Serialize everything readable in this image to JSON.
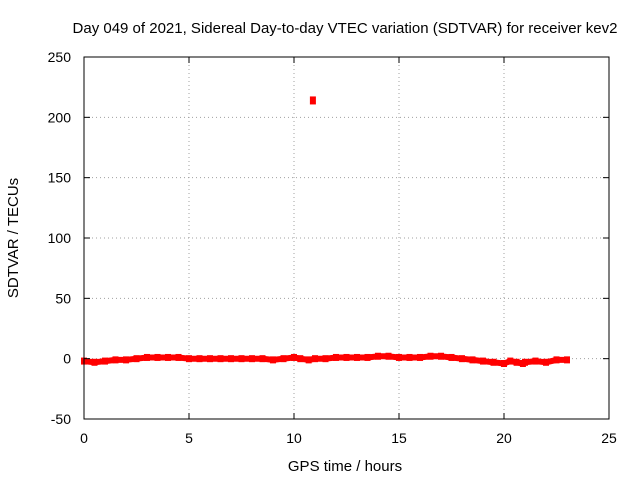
{
  "chart_data": {
    "type": "scatter",
    "title": "Day 049 of 2021, Sidereal Day-to-day VTEC variation (SDTVAR) for receiver kev2",
    "xlabel": "GPS time / hours",
    "ylabel": "SDTVAR / TECUs",
    "xlim": [
      0,
      25
    ],
    "ylim": [
      -50,
      250
    ],
    "xticks": [
      0,
      5,
      10,
      15,
      20,
      25
    ],
    "yticks": [
      -50,
      0,
      50,
      100,
      150,
      200,
      250
    ],
    "grid": true,
    "series": [
      {
        "name": "SDTVAR",
        "color": "#ff0000",
        "x": [
          0.0,
          0.5,
          1.0,
          1.5,
          2.0,
          2.5,
          3.0,
          3.5,
          4.0,
          4.5,
          5.0,
          5.5,
          6.0,
          6.5,
          7.0,
          7.5,
          8.0,
          8.5,
          9.0,
          9.5,
          10.0,
          10.3,
          10.7,
          10.9,
          11.0,
          11.5,
          12.0,
          12.5,
          13.0,
          13.5,
          14.0,
          14.5,
          15.0,
          15.5,
          16.0,
          16.5,
          17.0,
          17.5,
          18.0,
          18.5,
          19.0,
          19.5,
          20.0,
          20.3,
          20.6,
          20.9,
          21.0,
          21.5,
          22.0,
          22.5,
          23.0
        ],
        "y": [
          -2,
          -3,
          -2,
          -1,
          -1,
          0,
          1,
          1,
          1,
          1,
          0,
          0,
          0,
          0,
          0,
          0,
          0,
          0,
          -1,
          0,
          1,
          0,
          -1,
          214,
          0,
          0,
          1,
          1,
          1,
          1,
          2,
          2,
          1,
          1,
          1,
          2,
          2,
          1,
          0,
          -1,
          -2,
          -3,
          -4,
          -2,
          -3,
          -4,
          -3,
          -2,
          -3,
          -1,
          -1
        ]
      }
    ]
  }
}
